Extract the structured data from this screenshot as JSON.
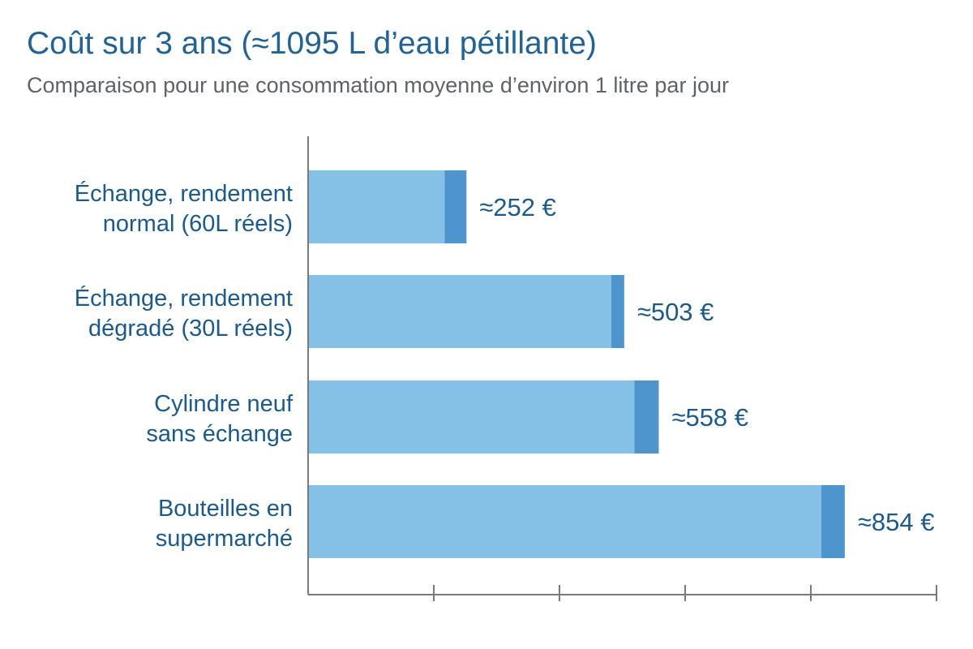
{
  "title": "Coût sur 3 ans (≈1095 L d’eau pétillante)",
  "subtitle": "Comparaison pour une consommation moyenne d’environ 1 litre par jour",
  "colors": {
    "title": "#236394",
    "subtitle": "#5f6368",
    "bar_main": "#85c0e6",
    "bar_accent": "#4d95cc",
    "label": "#1d5a8a",
    "axis": "#7a7a7a"
  },
  "chart_data": {
    "type": "bar",
    "orientation": "horizontal",
    "title": "Coût sur 3 ans (≈1095 L d’eau pétillante)",
    "subtitle": "Comparaison pour une consommation moyenne d’environ 1 litre par jour",
    "xlabel": "",
    "ylabel": "",
    "xlim": [
      0,
      1000
    ],
    "grid": false,
    "legend": "none",
    "categories": [
      [
        "Échange, rendement",
        "normal (60L réels)"
      ],
      [
        "Échange, rendement",
        "dégradé (30L réels)"
      ],
      [
        "Cylindre neuf",
        "sans échange"
      ],
      [
        "Bouteilles en",
        "supermarché"
      ]
    ],
    "values": [
      252,
      503,
      558,
      854
    ],
    "value_labels": [
      "≈252 €",
      "≈503 €",
      "≈558 €",
      "≈854 €"
    ],
    "x_ticks": [
      200,
      400,
      600,
      800,
      1000
    ]
  }
}
